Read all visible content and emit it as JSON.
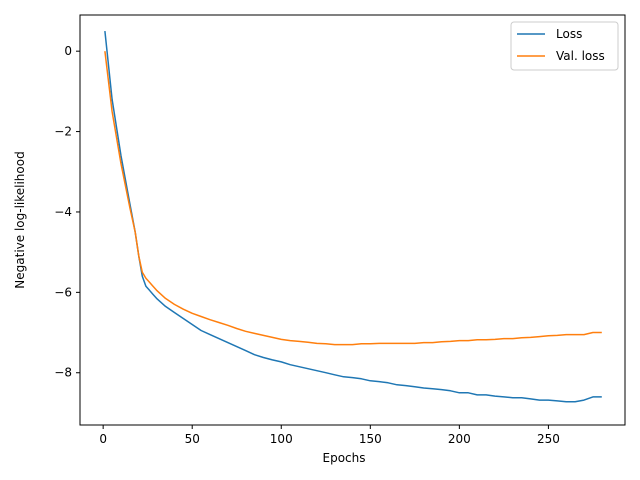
{
  "chart_data": {
    "type": "line",
    "title": "",
    "xlabel": "Epochs",
    "ylabel": "Negative log-likelihood",
    "xlim": [
      -13,
      293
    ],
    "ylim": [
      -9.3,
      0.9
    ],
    "xticks": [
      0,
      50,
      100,
      150,
      200,
      250
    ],
    "yticks": [
      0,
      -2,
      -4,
      -6,
      -8
    ],
    "grid": false,
    "legend_position": "top-right",
    "series": [
      {
        "name": "Loss",
        "color": "#1f77b4",
        "x": [
          1,
          5,
          10,
          15,
          18,
          20,
          22,
          24,
          26,
          28,
          30,
          35,
          40,
          45,
          50,
          55,
          60,
          65,
          70,
          75,
          80,
          85,
          90,
          95,
          100,
          105,
          110,
          115,
          120,
          125,
          130,
          135,
          140,
          145,
          150,
          155,
          160,
          165,
          170,
          175,
          180,
          185,
          190,
          195,
          200,
          205,
          210,
          215,
          220,
          225,
          230,
          235,
          240,
          245,
          250,
          255,
          260,
          265,
          270,
          275,
          280
        ],
        "y": [
          0.5,
          -1.2,
          -2.6,
          -3.8,
          -4.5,
          -5.1,
          -5.6,
          -5.85,
          -5.95,
          -6.05,
          -6.15,
          -6.35,
          -6.5,
          -6.65,
          -6.8,
          -6.95,
          -7.05,
          -7.15,
          -7.25,
          -7.35,
          -7.45,
          -7.55,
          -7.62,
          -7.68,
          -7.73,
          -7.8,
          -7.85,
          -7.9,
          -7.95,
          -8.0,
          -8.05,
          -8.1,
          -8.12,
          -8.15,
          -8.2,
          -8.22,
          -8.25,
          -8.3,
          -8.32,
          -8.35,
          -8.38,
          -8.4,
          -8.42,
          -8.45,
          -8.5,
          -8.5,
          -8.55,
          -8.55,
          -8.58,
          -8.6,
          -8.62,
          -8.62,
          -8.65,
          -8.68,
          -8.68,
          -8.7,
          -8.72,
          -8.72,
          -8.68,
          -8.6,
          -8.6
        ]
      },
      {
        "name": "Val. loss",
        "color": "#ff7f0e",
        "x": [
          1,
          5,
          10,
          15,
          18,
          20,
          22,
          24,
          26,
          28,
          30,
          35,
          40,
          45,
          50,
          55,
          60,
          65,
          70,
          75,
          80,
          85,
          90,
          95,
          100,
          105,
          110,
          115,
          120,
          125,
          130,
          135,
          140,
          145,
          150,
          155,
          160,
          165,
          170,
          175,
          180,
          185,
          190,
          195,
          200,
          205,
          210,
          215,
          220,
          225,
          230,
          235,
          240,
          245,
          250,
          255,
          260,
          265,
          270,
          275,
          280
        ],
        "y": [
          0.0,
          -1.5,
          -2.8,
          -3.9,
          -4.5,
          -5.1,
          -5.5,
          -5.65,
          -5.75,
          -5.85,
          -5.95,
          -6.15,
          -6.3,
          -6.42,
          -6.52,
          -6.6,
          -6.68,
          -6.75,
          -6.82,
          -6.9,
          -6.97,
          -7.02,
          -7.07,
          -7.12,
          -7.17,
          -7.2,
          -7.22,
          -7.24,
          -7.27,
          -7.28,
          -7.3,
          -7.3,
          -7.3,
          -7.28,
          -7.28,
          -7.27,
          -7.27,
          -7.27,
          -7.27,
          -7.27,
          -7.25,
          -7.25,
          -7.23,
          -7.22,
          -7.2,
          -7.2,
          -7.18,
          -7.18,
          -7.17,
          -7.15,
          -7.15,
          -7.13,
          -7.12,
          -7.1,
          -7.08,
          -7.07,
          -7.05,
          -7.05,
          -7.05,
          -7.0,
          -7.0
        ]
      }
    ]
  }
}
